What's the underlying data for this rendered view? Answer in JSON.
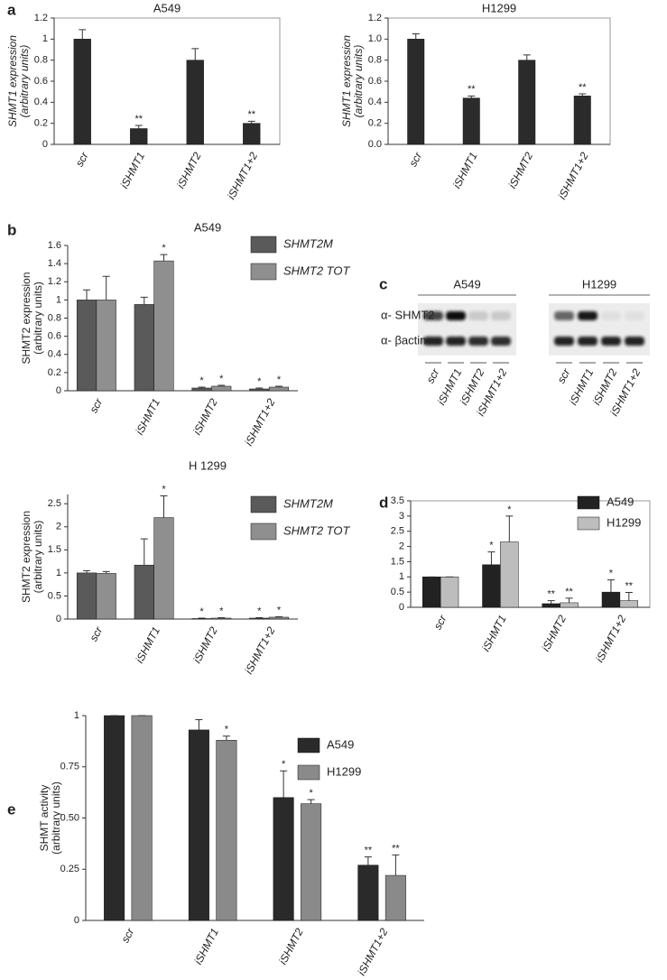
{
  "chart_data": [
    {
      "type": "bar",
      "panel": "a",
      "title": "A549",
      "ylabel": [
        "SHMT1 expression",
        "(arbitrary units)"
      ],
      "categories": [
        "scr",
        "iSHMT1",
        "iSHMT2",
        "iSHMT1+2"
      ],
      "series": [
        {
          "color": "#2b2b2b",
          "values": [
            1.0,
            0.15,
            0.8,
            0.2
          ],
          "errors": [
            0.09,
            0.03,
            0.11,
            0.02
          ],
          "annotations": [
            null,
            "**",
            null,
            "**"
          ]
        }
      ],
      "ylim": [
        0,
        1.2
      ],
      "yticks": [
        0,
        0.2,
        0.4,
        0.6,
        0.8,
        1,
        1.2
      ]
    },
    {
      "type": "bar",
      "title": "H1299",
      "ylabel": [
        "SHMT1 expression",
        "(arbitrary units)"
      ],
      "categories": [
        "scr",
        "iSHMT1",
        "iSHMT2",
        "iSHMT1+2"
      ],
      "series": [
        {
          "color": "#2b2b2b",
          "values": [
            1.0,
            0.44,
            0.8,
            0.46
          ],
          "errors": [
            0.05,
            0.02,
            0.05,
            0.02
          ],
          "annotations": [
            null,
            "**",
            null,
            "**"
          ]
        }
      ],
      "ylim": [
        0,
        1.2
      ],
      "yticks": [
        {
          "value": 0,
          "label": "0.0"
        },
        0.2,
        0.4,
        0.6,
        0.8,
        {
          "value": 1,
          "label": "1.0"
        },
        1.2
      ]
    },
    {
      "type": "bar",
      "panel": "b",
      "title": "A549",
      "ylabel": [
        "SHMT2 expression",
        "(arbitrary units)"
      ],
      "categories": [
        "scr",
        "iSHMT1",
        "iSHMT2",
        "iSHMT1+2"
      ],
      "series": [
        {
          "name": "SHMT2M",
          "color": "#5a5a5a",
          "values": [
            1.0,
            0.95,
            0.03,
            0.02
          ],
          "errors": [
            0.11,
            0.08,
            0.01,
            0.01
          ],
          "annotations": [
            null,
            null,
            "*",
            "*"
          ]
        },
        {
          "name": "SHMT2 TOT",
          "color": "#8f8f8f",
          "values": [
            1.0,
            1.43,
            0.05,
            0.04
          ],
          "errors": [
            0.26,
            0.07,
            0.01,
            0.01
          ],
          "annotations": [
            null,
            "*",
            "*",
            "*"
          ]
        }
      ],
      "ylim": [
        0,
        1.6
      ],
      "yticks": [
        0,
        0.2,
        0.4,
        0.6,
        0.8,
        1,
        1.2,
        1.4,
        1.6
      ]
    },
    {
      "type": "bar",
      "title": "H 1299",
      "ylabel": [
        "SHMT2 expression",
        "(arbitrary units)"
      ],
      "categories": [
        "scr",
        "iSHMT1",
        "iSHMT2",
        "iSHMT1+2"
      ],
      "series": [
        {
          "name": "SHMT2M",
          "color": "#5a5a5a",
          "values": [
            1.0,
            1.17,
            0.01,
            0.02
          ],
          "errors": [
            0.05,
            0.57,
            0.01,
            0.01
          ],
          "annotations": [
            null,
            null,
            "*",
            "*"
          ]
        },
        {
          "name": "SHMT2 TOT",
          "color": "#8f8f8f",
          "values": [
            0.99,
            2.2,
            0.02,
            0.04
          ],
          "errors": [
            0.04,
            0.47,
            0.01,
            0.01
          ],
          "annotations": [
            null,
            "*",
            "*",
            "*"
          ]
        }
      ],
      "ylim": [
        0,
        2.7
      ],
      "yticks": [
        0,
        0.5,
        1,
        1.5,
        2,
        2.5
      ]
    },
    {
      "type": "bar",
      "panel": "d",
      "categories": [
        "scr",
        "iSHMT1",
        "iSHMT2",
        "iSHMT1+2"
      ],
      "series": [
        {
          "name": "A549",
          "color": "#222222",
          "values": [
            1,
            1.4,
            0.12,
            0.5
          ],
          "errors": [
            0,
            0.42,
            0.1,
            0.4
          ],
          "annotations": [
            null,
            "*",
            "**",
            "*"
          ]
        },
        {
          "name": "H1299",
          "color": "#bdbdbd",
          "values": [
            1,
            2.15,
            0.15,
            0.22
          ],
          "errors": [
            0,
            0.85,
            0.15,
            0.27
          ],
          "annotations": [
            null,
            "*",
            "**",
            "**"
          ]
        }
      ],
      "ylim": [
        0,
        3.5
      ],
      "yticks": [
        0,
        0.5,
        1,
        1.5,
        2,
        2.5,
        3,
        3.5
      ]
    },
    {
      "type": "bar",
      "panel": "e",
      "ylabel": [
        "SHMT activity",
        "(arbitrary units)"
      ],
      "categories": [
        "scr",
        "iSHMT1",
        "iSHMT2",
        "iSHMT1+2"
      ],
      "series": [
        {
          "name": "A549",
          "color": "#2a2a2a",
          "values": [
            1,
            0.93,
            0.6,
            0.27
          ],
          "errors": [
            0,
            0.05,
            0.13,
            0.04
          ],
          "annotations": [
            null,
            null,
            "*",
            "**"
          ]
        },
        {
          "name": "H1299",
          "color": "#8a8a8a",
          "values": [
            1,
            0.88,
            0.57,
            0.22
          ],
          "errors": [
            0,
            0.02,
            0.02,
            0.1
          ],
          "annotations": [
            null,
            "*",
            "*",
            "**"
          ]
        }
      ],
      "ylim": [
        0,
        1
      ],
      "yticks": [
        0,
        0.25,
        {
          "value": 0.5,
          "label": "0.50"
        },
        0.75,
        1
      ]
    }
  ],
  "blot": {
    "panel": "c",
    "rows": [
      "α- SHMT2",
      "α- βactin"
    ],
    "groups": [
      {
        "name": "A549",
        "lanes": [
          "scr",
          "iSHMT1",
          "iSHMT2",
          "iSHMT1+2"
        ]
      },
      {
        "name": "H1299",
        "lanes": [
          "scr",
          "iSHMT1",
          "iSHMT2",
          "iSHMT1+2"
        ]
      }
    ]
  }
}
